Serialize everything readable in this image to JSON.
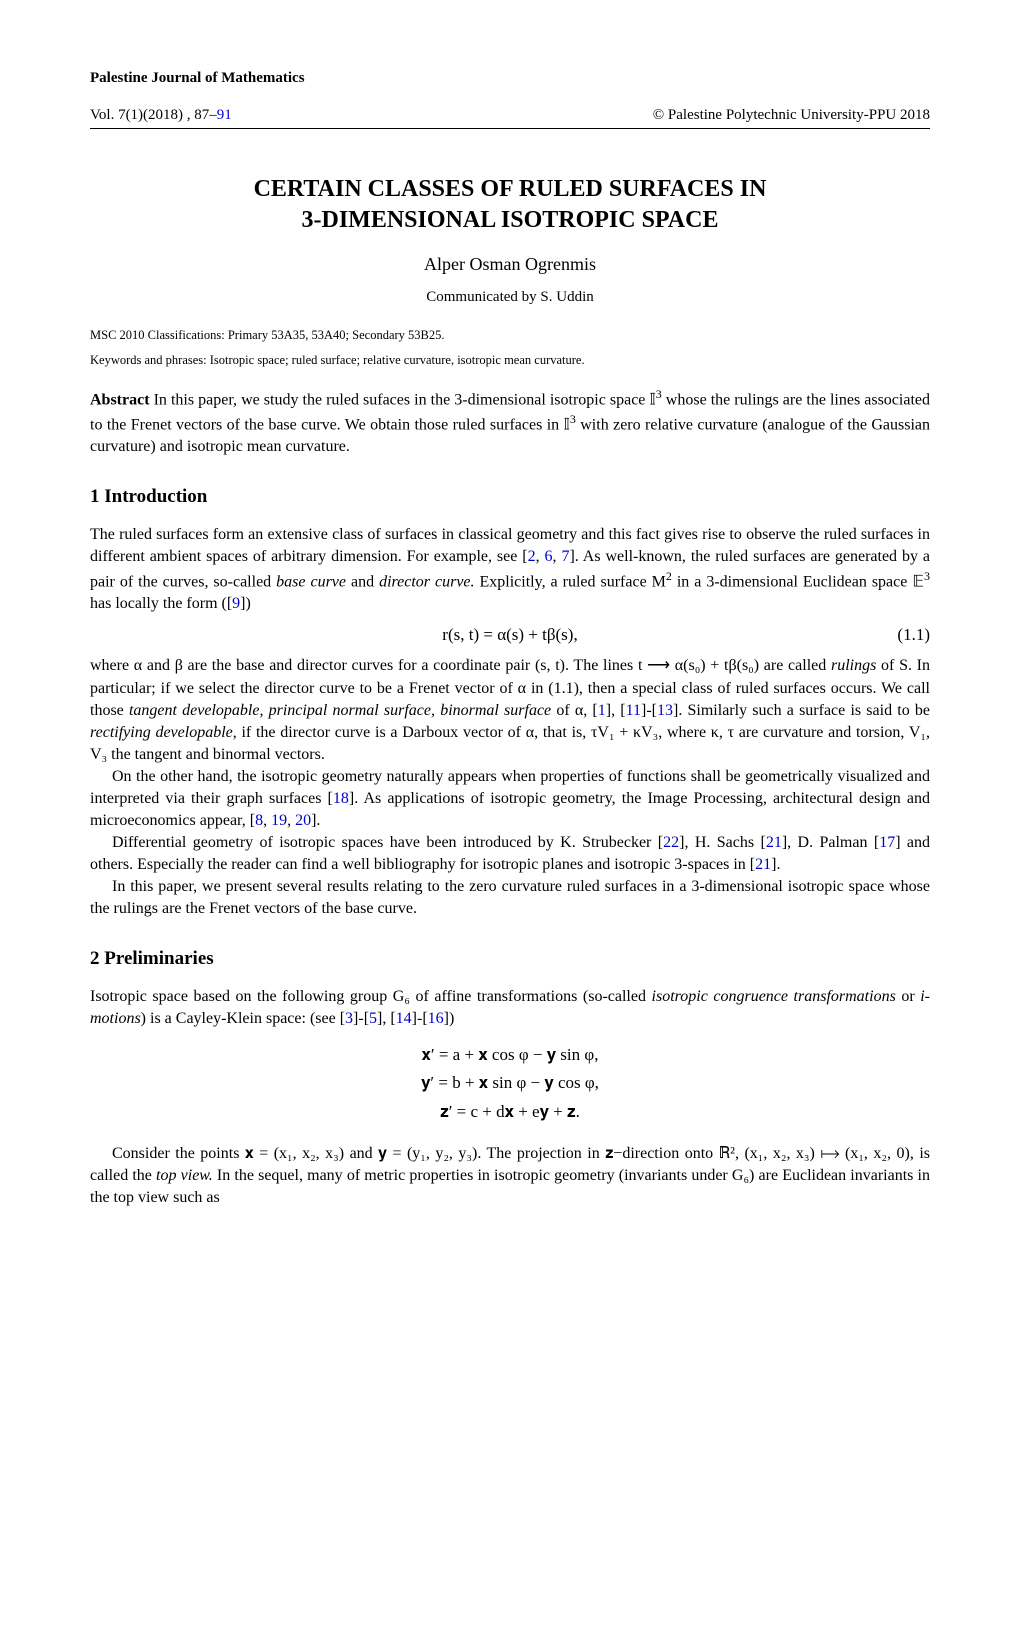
{
  "journal": "Palestine Journal of Mathematics",
  "vol_label": "Vol. 7(1)(2018) , 87–",
  "page_end": "91",
  "copyright": "© Palestine Polytechnic University-PPU 2018",
  "title_line1": "CERTAIN CLASSES OF RULED SURFACES IN",
  "title_line2": "3-DIMENSIONAL ISOTROPIC SPACE",
  "author": "Alper Osman Ogrenmis",
  "communicated": "Communicated by S. Uddin",
  "msc": "MSC 2010 Classifications: Primary 53A35, 53A40; Secondary 53B25.",
  "keywords": "Keywords and phrases: Isotropic space; ruled surface; relative curvature, isotropic mean curvature.",
  "abstract_label": "Abstract",
  "abstract_body1": " In this paper, we study the ruled sufaces in the 3-dimensional isotropic space 𝕀",
  "abstract_body2": " whose the rulings are the lines associated to the Frenet vectors of the base curve. We obtain those ruled surfaces in 𝕀",
  "abstract_body3": " with zero relative curvature (analogue of the Gaussian curvature) and isotropic mean curvature.",
  "sec1_heading": "1  Introduction",
  "sec1_p1a": "The ruled surfaces form an extensive class of surfaces in classical geometry and this fact gives rise to observe the ruled surfaces in different ambient spaces of arbitrary dimension. For example, see [",
  "c2": "2",
  "sec1_p1b": ", ",
  "c6": "6",
  "sec1_p1c": ", ",
  "c7": "7",
  "sec1_p1d": "]. As well-known, the ruled surfaces are generated by a pair of the curves, so-called ",
  "sec1_p1e": "base curve",
  "sec1_p1f": " and ",
  "sec1_p1g": "director curve.",
  "sec1_p1h": " Explicitly, a ruled surface M",
  "sec1_p1i": " in a 3-dimensional Euclidean space 𝔼",
  "sec1_p1j": " has locally the form ([",
  "c9": "9",
  "sec1_p1k": "])",
  "eq1": "r(s, t) = α(s) + tβ(s),",
  "eq1_num": "(1.1)",
  "sec1_p2a": "where α and β are the base and director curves for a coordinate pair (s, t). The lines t ⟶ α(s₀) + tβ(s₀) are called ",
  "sec1_p2b": "rulings",
  "sec1_p2c": " of S. In particular; if we select the director curve to be a Frenet vector of α in (1.1), then a special class of ruled surfaces occurs. We call those ",
  "sec1_p2d": "tangent developable, principal normal surface, binormal surface",
  "sec1_p2e": " of α, [",
  "c1": "1",
  "sec1_p2f": "], [",
  "c11": "11",
  "sec1_p2g": "]-[",
  "c13": "13",
  "sec1_p2h": "]. Similarly such a surface is said to be ",
  "sec1_p2i": "rectifying developable",
  "sec1_p2j": ", if the director curve is a Darboux vector of α, that is, τV₁ + κV₃, where κ, τ are curvature and torsion, V₁, V₃ the tangent and binormal vectors.",
  "sec1_p3a": "On the other hand, the isotropic geometry naturally appears when properties of functions shall be geometrically visualized and interpreted via their graph surfaces [",
  "c18": "18",
  "sec1_p3b": "]. As applications of isotropic geometry, the Image Processing, architectural design and microeconomics appear, [",
  "c8": "8",
  "sec1_p3c": ", ",
  "c19": "19",
  "sec1_p3d": ", ",
  "c20": "20",
  "sec1_p3e": "].",
  "sec1_p4a": "Differential geometry of isotropic spaces have been introduced by K. Strubecker [",
  "c22": "22",
  "sec1_p4b": "], H. Sachs [",
  "c21": "21",
  "sec1_p4c": "], D. Palman [",
  "c17": "17",
  "sec1_p4d": "] and others. Especially the reader can find a well bibliography for isotropic planes and isotropic 3-spaces in [",
  "sec1_p4e": "].",
  "sec1_p5": "In this paper, we present several results relating to the zero curvature ruled surfaces in a 3-dimensional isotropic space whose the rulings are the Frenet vectors of the base curve.",
  "sec2_heading": "2  Preliminaries",
  "sec2_p1a": "Isotropic space based on the following group G₆ of affine transformations (so-called ",
  "sec2_p1b": "isotropic congruence transformations",
  "sec2_p1c": " or ",
  "sec2_p1d": "i-motions",
  "sec2_p1e": ") is a Cayley-Klein space: (see [",
  "c3": "3",
  "sec2_p1f": "]-[",
  "c5": "5",
  "sec2_p1g": "], [",
  "c14": "14",
  "sec2_p1h": "]-[",
  "c16": "16",
  "sec2_p1i": "])",
  "eq2_r1": "𝐱′    =    a + 𝐱 cos φ − 𝐲 sin φ,",
  "eq2_r2": "𝐲′    =    b + 𝐱 sin φ − 𝐲 cos φ,",
  "eq2_r3": "𝐳′    =    c + d𝐱 + e𝐲 + 𝐳.",
  "sec2_p2a": "Consider the points 𝐱 = (x₁, x₂, x₃) and 𝐲 = (y₁, y₂, y₃). The projection in 𝐳−direction onto ℝ², (x₁, x₂, x₃) ⟼ (x₁, x₂, 0), is called the ",
  "sec2_p2b": "top view.",
  "sec2_p2c": " In the sequel, many of metric properties in isotropic geometry (invariants under G₆) are Euclidean invariants in the top view such as"
}
